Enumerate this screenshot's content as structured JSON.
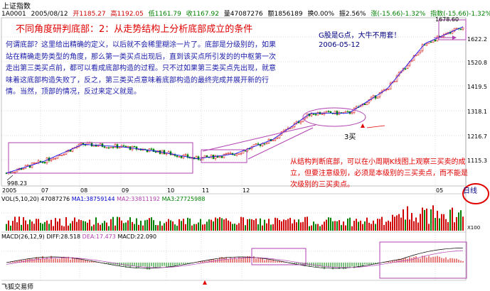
{
  "title": "上证指数",
  "infobar": {
    "code": "1A0001",
    "date": "2005/08/12",
    "open": "开1185.27",
    "high": "高1192.05",
    "low": "低1161.79",
    "close": "收1167.92",
    "volume": "量47087276",
    "amount": "额1856189",
    "turnover": "换0.00%",
    "amplitude": "振2.56%",
    "change": "涨(-15.66)-1.32%",
    "index": "指数(-15.66)-1.32%"
  },
  "heading": "不同角度研判底部：2：从走势结构上分析底部成立的条件",
  "paragraph": "何谓底部？这里给出精确的定义，以后就不会稀里糊涂一片了。底部是分级别的，如果站在精确走势类型的角度，那么第一类买点出现后，直到该买点所引发的的中枢第一次走出第三类买点前，都可以看成底部构造的过程。只不过如果第三类买点先出现，就意味着这底部构造失败了，反之，第三类买点意味着底部构造的最终完成并展开新的行情。当然，顶部的情况，反过来定义就是。",
  "note_g": [
    "G股是G点，大牛不用套！",
    "2006-05-12"
  ],
  "note_3buy": "3买",
  "note_red": "从结构判断底部，可以在小周期K线图上观察三买卖的成立，但要注意级别，必须是本级别的三买卖点，而不能是次级别的三买卖点。",
  "price_labels": [
    "1678.60",
    "1622.2",
    "1520.8",
    "1419.5",
    "1318.1",
    "1216.7",
    "1115.3"
  ],
  "low_label": "998.23",
  "high_label": "1678.60",
  "x_labels": [
    "2005",
    "07",
    "08",
    "09",
    "10",
    "11",
    "12",
    "05"
  ],
  "period_label": "日线",
  "vol_label": {
    "prefix": "VOL(5,10,20)",
    "v": "47087276",
    "ma1": "MA1:38759144",
    "ma2": "MA2:33811192",
    "ma3": "MA3:27725988",
    "scale": "X100"
  },
  "macd_label": {
    "prefix": "MACD(26,12,9)",
    "diff": "DIFF:28.518",
    "dea": "DEA:17.473",
    "macd": "MACD:22.090"
  },
  "footer": "飞狐交易师",
  "colors": {
    "up": "#d00000",
    "down": "#008000",
    "annotation": "#b040b0",
    "text_blue": "#1a1aa8"
  },
  "chart_data": {
    "type": "line",
    "title": "上证指数",
    "ylim": [
      998.23,
      1678.6
    ],
    "series": [
      {
        "x": [
          "2005-06",
          "2005-07",
          "2005-08",
          "2005-09",
          "2005-10",
          "2005-11",
          "2005-12",
          "2006-01",
          "2006-02",
          "2006-03",
          "2006-04",
          "2006-05",
          "2006-05-12"
        ],
        "values": [
          1040,
          1090,
          1160,
          1150,
          1130,
          1100,
          1120,
          1180,
          1290,
          1290,
          1390,
          1580,
          1650
        ]
      }
    ]
  }
}
